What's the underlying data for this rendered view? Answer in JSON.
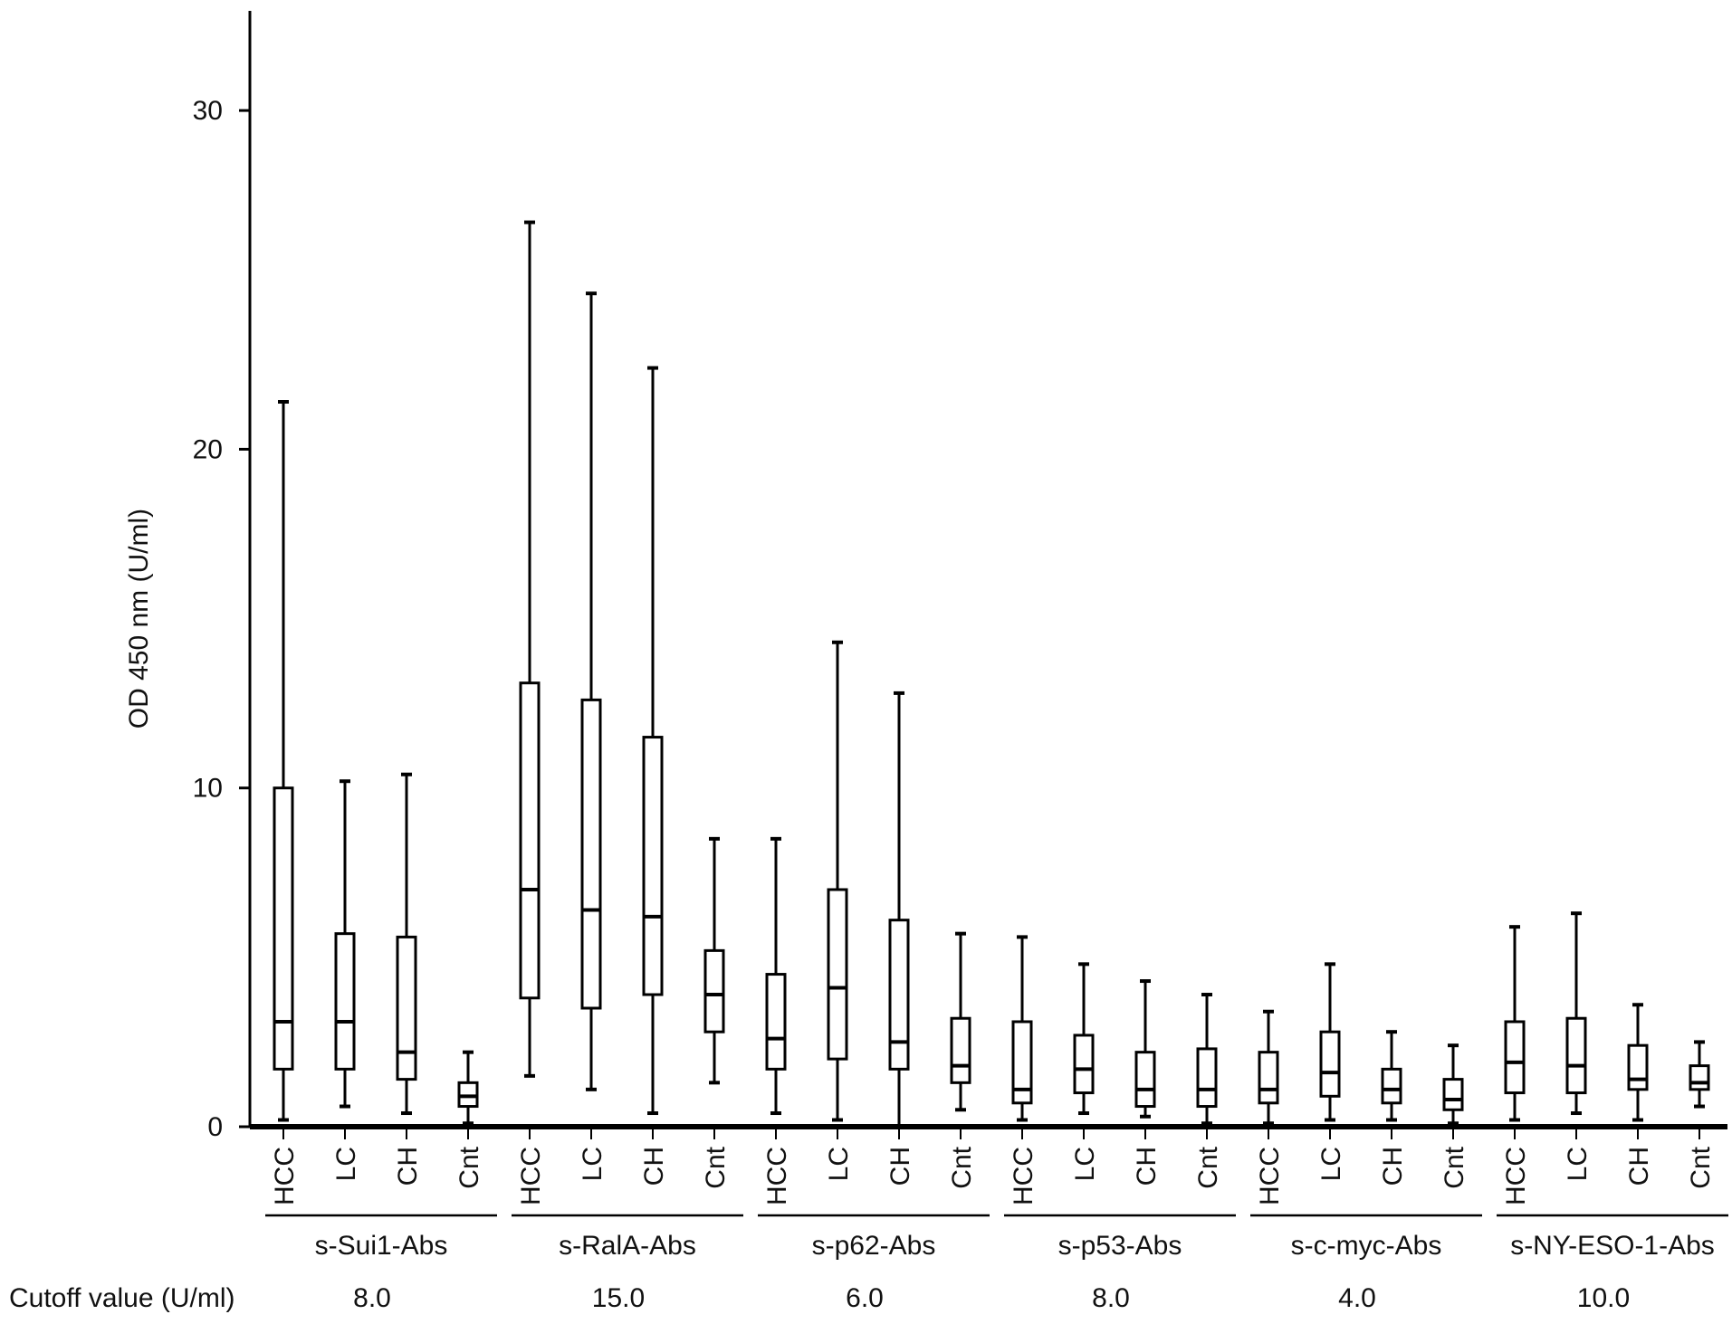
{
  "chart_data": {
    "type": "boxplot",
    "ylabel": "OD 450 nm (U/ml)",
    "ylim": [
      0,
      33
    ],
    "yticks": [
      0,
      10,
      20,
      30
    ],
    "grid": false,
    "cutoff_label": "Cutoff value (U/ml)",
    "groups": [
      {
        "name": "s-Sui1-Abs",
        "cutoff": "8.0",
        "boxes": [
          {
            "category": "HCC",
            "min": 0.2,
            "q1": 1.7,
            "median": 3.1,
            "q3": 10.0,
            "max": 21.4
          },
          {
            "category": "LC",
            "min": 0.6,
            "q1": 1.7,
            "median": 3.1,
            "q3": 5.7,
            "max": 10.2
          },
          {
            "category": "CH",
            "min": 0.4,
            "q1": 1.4,
            "median": 2.2,
            "q3": 5.6,
            "max": 10.4
          },
          {
            "category": "Cnt",
            "min": 0.1,
            "q1": 0.6,
            "median": 0.9,
            "q3": 1.3,
            "max": 2.2
          }
        ]
      },
      {
        "name": "s-RalA-Abs",
        "cutoff": "15.0",
        "boxes": [
          {
            "category": "HCC",
            "min": 1.5,
            "q1": 3.8,
            "median": 7.0,
            "q3": 13.1,
            "max": 26.7
          },
          {
            "category": "LC",
            "min": 1.1,
            "q1": 3.5,
            "median": 6.4,
            "q3": 12.6,
            "max": 24.6
          },
          {
            "category": "CH",
            "min": 0.4,
            "q1": 3.9,
            "median": 6.2,
            "q3": 11.5,
            "max": 22.4
          },
          {
            "category": "Cnt",
            "min": 1.3,
            "q1": 2.8,
            "median": 3.9,
            "q3": 5.2,
            "max": 8.5
          }
        ]
      },
      {
        "name": "s-p62-Abs",
        "cutoff": "6.0",
        "boxes": [
          {
            "category": "HCC",
            "min": 0.4,
            "q1": 1.7,
            "median": 2.6,
            "q3": 4.5,
            "max": 8.5
          },
          {
            "category": "LC",
            "min": 0.2,
            "q1": 2.0,
            "median": 4.1,
            "q3": 7.0,
            "max": 14.3
          },
          {
            "category": "CH",
            "min": 0.0,
            "q1": 1.7,
            "median": 2.5,
            "q3": 6.1,
            "max": 12.8
          },
          {
            "category": "Cnt",
            "min": 0.5,
            "q1": 1.3,
            "median": 1.8,
            "q3": 3.2,
            "max": 5.7
          }
        ]
      },
      {
        "name": "s-p53-Abs",
        "cutoff": "8.0",
        "boxes": [
          {
            "category": "HCC",
            "min": 0.2,
            "q1": 0.7,
            "median": 1.1,
            "q3": 3.1,
            "max": 5.6
          },
          {
            "category": "LC",
            "min": 0.4,
            "q1": 1.0,
            "median": 1.7,
            "q3": 2.7,
            "max": 4.8
          },
          {
            "category": "CH",
            "min": 0.3,
            "q1": 0.6,
            "median": 1.1,
            "q3": 2.2,
            "max": 4.3
          },
          {
            "category": "Cnt",
            "min": 0.1,
            "q1": 0.6,
            "median": 1.1,
            "q3": 2.3,
            "max": 3.9
          }
        ]
      },
      {
        "name": "s-c-myc-Abs",
        "cutoff": "4.0",
        "boxes": [
          {
            "category": "HCC",
            "min": 0.1,
            "q1": 0.7,
            "median": 1.1,
            "q3": 2.2,
            "max": 3.4
          },
          {
            "category": "LC",
            "min": 0.2,
            "q1": 0.9,
            "median": 1.6,
            "q3": 2.8,
            "max": 4.8
          },
          {
            "category": "CH",
            "min": 0.2,
            "q1": 0.7,
            "median": 1.1,
            "q3": 1.7,
            "max": 2.8
          },
          {
            "category": "Cnt",
            "min": 0.1,
            "q1": 0.5,
            "median": 0.8,
            "q3": 1.4,
            "max": 2.4
          }
        ]
      },
      {
        "name": "s-NY-ESO-1-Abs",
        "cutoff": "10.0",
        "boxes": [
          {
            "category": "HCC",
            "min": 0.2,
            "q1": 1.0,
            "median": 1.9,
            "q3": 3.1,
            "max": 5.9
          },
          {
            "category": "LC",
            "min": 0.4,
            "q1": 1.0,
            "median": 1.8,
            "q3": 3.2,
            "max": 6.3
          },
          {
            "category": "CH",
            "min": 0.2,
            "q1": 1.1,
            "median": 1.4,
            "q3": 2.4,
            "max": 3.6
          },
          {
            "category": "Cnt",
            "min": 0.6,
            "q1": 1.1,
            "median": 1.3,
            "q3": 1.8,
            "max": 2.5
          }
        ]
      }
    ]
  }
}
